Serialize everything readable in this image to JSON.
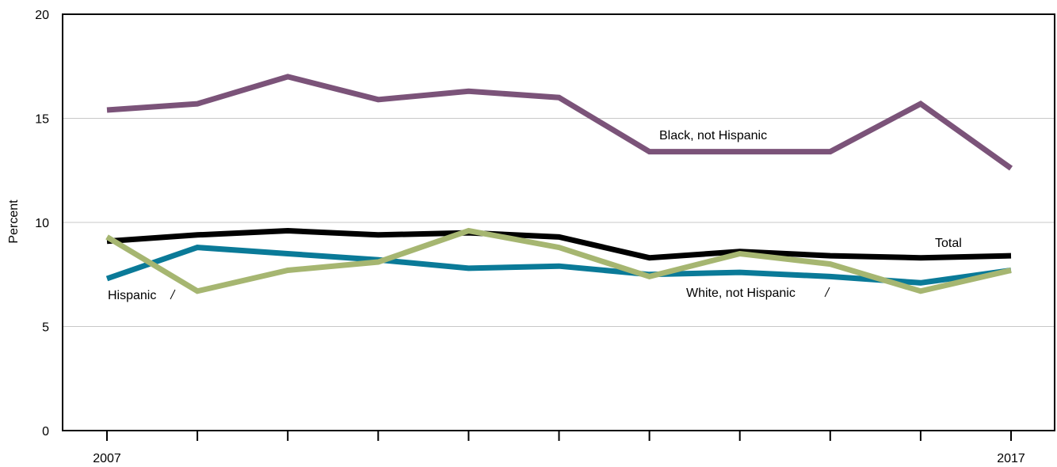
{
  "chart_data": {
    "type": "line",
    "x": [
      2007,
      2008,
      2009,
      2010,
      2011,
      2012,
      2013,
      2014,
      2015,
      2016,
      2017
    ],
    "x_tick_labels": [
      "2007",
      "",
      "",
      "",
      "",
      "",
      "",
      "",
      "",
      "",
      "2017"
    ],
    "ylabel": "Percent",
    "xlabel": "",
    "title": "",
    "ylim": [
      0,
      20
    ],
    "y_ticks": [
      0,
      5,
      10,
      15,
      20
    ],
    "y_tick_labels": [
      "0",
      "5",
      "10",
      "15",
      "20"
    ],
    "grid": "horizontal",
    "legend": "none (direct labels on lines)",
    "series": [
      {
        "name": "Black, not Hispanic",
        "color": "#7b5379",
        "values": [
          15.4,
          15.7,
          17.0,
          15.9,
          16.3,
          16.0,
          13.4,
          13.4,
          13.4,
          15.7,
          12.6
        ]
      },
      {
        "name": "Total",
        "color": "#000000",
        "values": [
          9.1,
          9.4,
          9.6,
          9.4,
          9.5,
          9.3,
          8.3,
          8.6,
          8.4,
          8.3,
          8.4
        ]
      },
      {
        "name": "White, not Hispanic",
        "color": "#0a7a98",
        "values": [
          7.3,
          8.8,
          8.5,
          8.2,
          7.8,
          7.9,
          7.5,
          7.6,
          7.4,
          7.1,
          7.7
        ]
      },
      {
        "name": "Hispanic",
        "color": "#a6b671",
        "values": [
          9.3,
          6.7,
          7.7,
          8.1,
          9.6,
          8.8,
          7.4,
          8.5,
          8.0,
          6.7,
          7.7
        ]
      }
    ]
  }
}
